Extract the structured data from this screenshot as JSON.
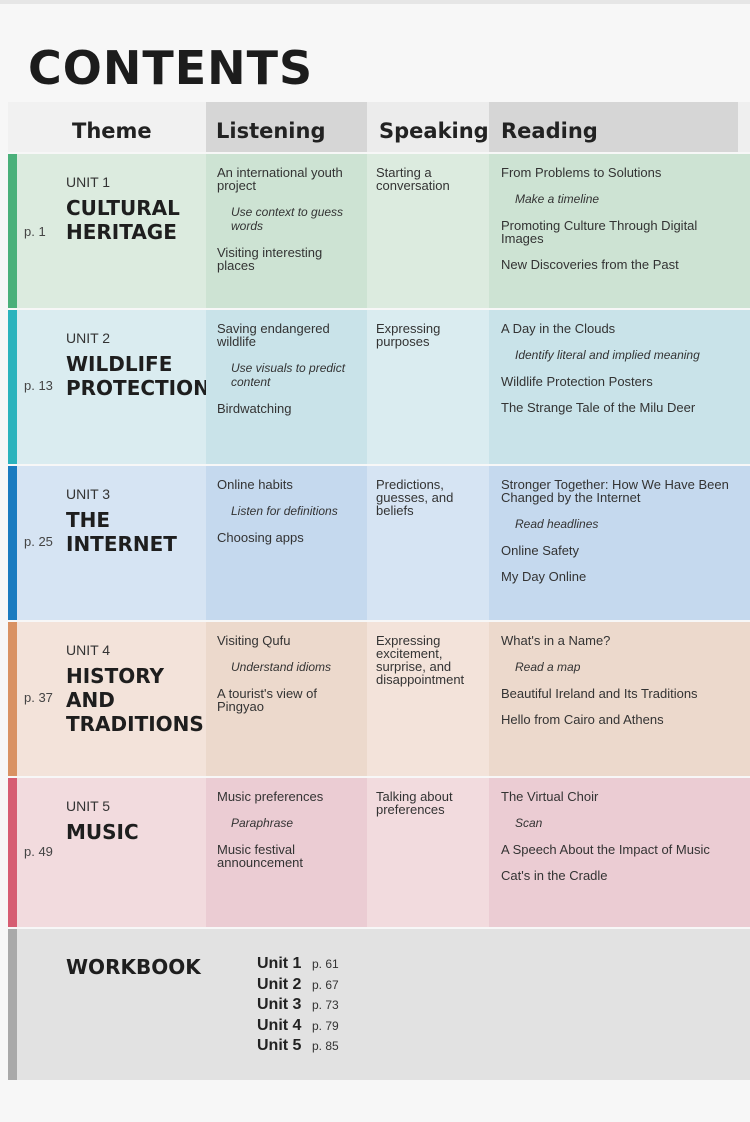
{
  "title": "CONTENTS",
  "headers": {
    "theme": "Theme",
    "listening": "Listening",
    "speaking": "Speaking",
    "reading": "Reading"
  },
  "units": [
    {
      "page": "p. 1",
      "unit": "UNIT 1",
      "name": [
        "CULTURAL",
        "HERITAGE"
      ],
      "listening": [
        {
          "kind": "item",
          "text": "An international youth project"
        },
        {
          "kind": "skill",
          "text": "Use context to guess words"
        },
        {
          "kind": "item",
          "text": "Visiting interesting places"
        }
      ],
      "speaking": [
        {
          "kind": "item",
          "text": "Starting a conversation"
        }
      ],
      "reading": [
        {
          "kind": "item",
          "text": "From Problems to Solutions"
        },
        {
          "kind": "skill",
          "text": "Make a timeline"
        },
        {
          "kind": "item",
          "text": "Promoting Culture Through Digital Images"
        },
        {
          "kind": "item",
          "text": "New Discoveries from the Past"
        }
      ]
    },
    {
      "page": "p. 13",
      "unit": "UNIT 2",
      "name": [
        "WILDLIFE",
        "PROTECTION"
      ],
      "listening": [
        {
          "kind": "item",
          "text": "Saving endangered wildlife"
        },
        {
          "kind": "skill",
          "text": "Use visuals to predict content"
        },
        {
          "kind": "item",
          "text": "Birdwatching"
        }
      ],
      "speaking": [
        {
          "kind": "item",
          "text": "Expressing purposes"
        }
      ],
      "reading": [
        {
          "kind": "item",
          "text": "A Day in the Clouds"
        },
        {
          "kind": "skill",
          "text": "Identify literal and implied meaning"
        },
        {
          "kind": "item",
          "text": "Wildlife Protection Posters"
        },
        {
          "kind": "item",
          "text": "The Strange Tale of the Milu Deer"
        }
      ]
    },
    {
      "page": "p. 25",
      "unit": "UNIT 3",
      "name": [
        "THE",
        "INTERNET"
      ],
      "listening": [
        {
          "kind": "item",
          "text": "Online habits"
        },
        {
          "kind": "skill",
          "text": "Listen for definitions"
        },
        {
          "kind": "item",
          "text": "Choosing apps"
        }
      ],
      "speaking": [
        {
          "kind": "item",
          "text": "Predictions, guesses, and beliefs"
        }
      ],
      "reading": [
        {
          "kind": "item",
          "text": "Stronger Together: How We Have Been Changed by the Internet"
        },
        {
          "kind": "skill",
          "text": "Read headlines"
        },
        {
          "kind": "item",
          "text": "Online Safety"
        },
        {
          "kind": "item",
          "text": "My Day Online"
        }
      ]
    },
    {
      "page": "p. 37",
      "unit": "UNIT 4",
      "name": [
        "HISTORY",
        "AND",
        "TRADITIONS"
      ],
      "listening": [
        {
          "kind": "item",
          "text": "Visiting Qufu"
        },
        {
          "kind": "skill",
          "text": "Understand idioms"
        },
        {
          "kind": "item",
          "text": "A tourist's view of Pingyao"
        }
      ],
      "speaking": [
        {
          "kind": "item",
          "text": "Expressing excitement, surprise, and disappointment"
        }
      ],
      "reading": [
        {
          "kind": "item",
          "text": "What's in a Name?"
        },
        {
          "kind": "skill",
          "text": "Read a map"
        },
        {
          "kind": "item",
          "text": "Beautiful Ireland and Its Traditions"
        },
        {
          "kind": "item",
          "text": "Hello from Cairo and Athens"
        }
      ]
    },
    {
      "page": "p. 49",
      "unit": "UNIT 5",
      "name": [
        "MUSIC"
      ],
      "listening": [
        {
          "kind": "item",
          "text": "Music preferences"
        },
        {
          "kind": "skill",
          "text": "Paraphrase"
        },
        {
          "kind": "item",
          "text": "Music festival announcement"
        }
      ],
      "speaking": [
        {
          "kind": "item",
          "text": "Talking about preferences"
        }
      ],
      "reading": [
        {
          "kind": "item",
          "text": "The Virtual Choir"
        },
        {
          "kind": "skill",
          "text": "Scan"
        },
        {
          "kind": "item",
          "text": "A Speech About the Impact of Music"
        },
        {
          "kind": "item",
          "text": "Cat's in the Cradle"
        }
      ]
    }
  ],
  "workbook": {
    "title": "WORKBOOK",
    "entries": [
      {
        "unit": "Unit 1",
        "page": "p. 61"
      },
      {
        "unit": "Unit 2",
        "page": "p. 67"
      },
      {
        "unit": "Unit 3",
        "page": "p. 73"
      },
      {
        "unit": "Unit 4",
        "page": "p. 79"
      },
      {
        "unit": "Unit 5",
        "page": "p. 85"
      }
    ]
  }
}
